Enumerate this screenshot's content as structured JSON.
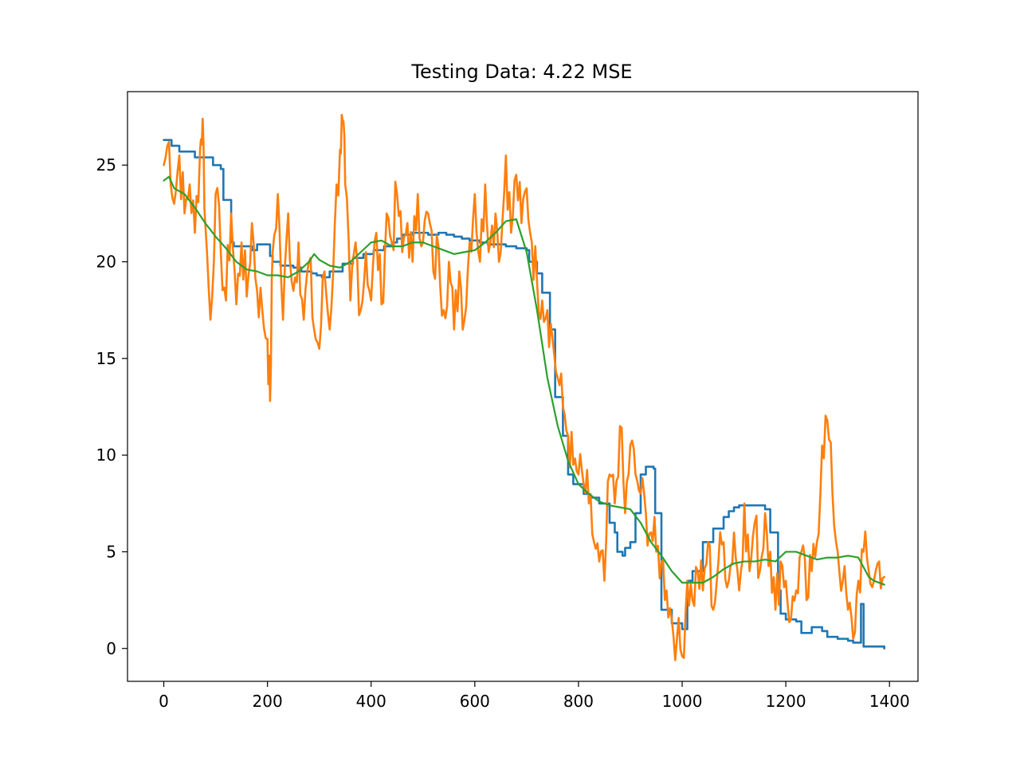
{
  "chart_data": {
    "type": "line",
    "title": "Testing Data: 4.22 MSE",
    "xlabel": "",
    "ylabel": "",
    "xlim": [
      -70,
      1455
    ],
    "ylim": [
      -1.7,
      28.8
    ],
    "xticks": [
      0,
      200,
      400,
      600,
      800,
      1000,
      1200,
      1400
    ],
    "xtick_labels": [
      "0",
      "200",
      "400",
      "600",
      "800",
      "1000",
      "1200",
      "1400"
    ],
    "yticks": [
      0,
      5,
      10,
      15,
      20,
      25
    ],
    "ytick_labels": [
      "0",
      "5",
      "10",
      "15",
      "20",
      "25"
    ],
    "grid": false,
    "legend": "none",
    "series": [
      {
        "color": "#1f77b4",
        "style": "step",
        "x": [
          0,
          15,
          30,
          60,
          95,
          110,
          115,
          130,
          135,
          170,
          180,
          205,
          210,
          225,
          245,
          250,
          265,
          285,
          295,
          305,
          320,
          345,
          365,
          385,
          405,
          425,
          440,
          450,
          460,
          480,
          490,
          510,
          530,
          545,
          560,
          575,
          590,
          610,
          625,
          640,
          660,
          680,
          700,
          705,
          720,
          730,
          745,
          755,
          770,
          780,
          790,
          810,
          820,
          840,
          860,
          870,
          875,
          885,
          890,
          900,
          910,
          920,
          930,
          945,
          948,
          960,
          980,
          1000,
          1010,
          1020,
          1040,
          1060,
          1080,
          1090,
          1100,
          1110,
          1150,
          1160,
          1170,
          1185,
          1190,
          1200,
          1220,
          1230,
          1250,
          1270,
          1280,
          1300,
          1320,
          1330,
          1340,
          1345,
          1350,
          1390
        ],
        "y": [
          26.3,
          26.0,
          25.7,
          25.4,
          25.0,
          24.8,
          23.2,
          21.0,
          20.8,
          20.6,
          20.9,
          20.3,
          20.0,
          19.8,
          19.8,
          19.7,
          19.5,
          19.4,
          19.3,
          19.2,
          19.5,
          19.9,
          20.2,
          20.4,
          20.6,
          20.8,
          21.0,
          21.2,
          21.4,
          21.5,
          21.5,
          21.4,
          21.5,
          21.4,
          21.3,
          21.2,
          21.1,
          21.0,
          20.9,
          20.9,
          20.8,
          20.7,
          20.6,
          20.0,
          19.4,
          18.4,
          16.5,
          13.0,
          11.0,
          9.0,
          8.5,
          8.0,
          7.8,
          7.5,
          6.5,
          6.0,
          5.0,
          4.8,
          5.2,
          5.5,
          7.0,
          9.0,
          9.4,
          9.3,
          7.0,
          2.0,
          1.3,
          1.0,
          3.5,
          4.0,
          5.5,
          6.2,
          6.8,
          7.1,
          7.3,
          7.4,
          7.4,
          7.2,
          6.0,
          3.0,
          1.8,
          1.5,
          1.4,
          0.8,
          1.1,
          0.9,
          0.6,
          0.5,
          0.4,
          0.3,
          0.3,
          2.3,
          0.1,
          0.0
        ]
      },
      {
        "color": "#ff7f0e",
        "style": "noisy",
        "x": [
          0,
          10,
          20,
          30,
          40,
          50,
          60,
          70,
          75,
          80,
          90,
          100,
          110,
          120,
          130,
          140,
          150,
          160,
          170,
          180,
          190,
          200,
          205,
          210,
          220,
          230,
          240,
          250,
          260,
          270,
          280,
          290,
          300,
          310,
          320,
          330,
          340,
          345,
          350,
          360,
          370,
          380,
          390,
          400,
          410,
          420,
          430,
          440,
          450,
          460,
          470,
          480,
          490,
          500,
          510,
          520,
          530,
          540,
          550,
          560,
          570,
          580,
          590,
          600,
          610,
          620,
          630,
          640,
          650,
          660,
          670,
          680,
          690,
          700,
          710,
          720,
          730,
          740,
          750,
          760,
          770,
          780,
          790,
          800,
          810,
          820,
          830,
          840,
          850,
          860,
          870,
          880,
          890,
          900,
          910,
          920,
          930,
          940,
          950,
          960,
          970,
          980,
          990,
          1000,
          1010,
          1020,
          1030,
          1040,
          1050,
          1060,
          1070,
          1080,
          1090,
          1100,
          1110,
          1120,
          1130,
          1140,
          1150,
          1160,
          1170,
          1180,
          1190,
          1200,
          1210,
          1220,
          1230,
          1240,
          1250,
          1260,
          1270,
          1280,
          1290,
          1300,
          1310,
          1320,
          1330,
          1340,
          1350,
          1360,
          1370,
          1380,
          1390
        ],
        "y": [
          25.0,
          26.2,
          23.0,
          25.5,
          22.5,
          24.0,
          21.5,
          25.8,
          27.4,
          22.0,
          17.0,
          23.5,
          20.5,
          18.0,
          22.5,
          17.8,
          21.0,
          18.2,
          22.0,
          18.5,
          17.5,
          16.0,
          12.8,
          20.5,
          23.5,
          17.0,
          22.5,
          18.5,
          21.0,
          17.0,
          20.0,
          16.5,
          15.5,
          19.5,
          16.5,
          22.0,
          25.8,
          27.3,
          24.0,
          18.0,
          21.0,
          17.5,
          20.5,
          18.0,
          21.5,
          17.8,
          22.5,
          21.0,
          23.5,
          20.5,
          22.0,
          20.0,
          23.5,
          21.0,
          22.5,
          19.5,
          20.8,
          17.5,
          20.0,
          16.5,
          19.5,
          17.0,
          21.0,
          23.5,
          20.0,
          24.0,
          21.0,
          22.5,
          20.5,
          25.5,
          21.5,
          24.5,
          22.0,
          23.8,
          21.0,
          19.0,
          18.0,
          17.5,
          16.0,
          14.0,
          12.5,
          11.0,
          9.5,
          9.0,
          8.5,
          7.5,
          5.5,
          4.5,
          3.5,
          9.0,
          7.5,
          11.5,
          7.0,
          10.5,
          9.0,
          8.0,
          7.0,
          6.0,
          5.0,
          4.5,
          3.0,
          1.5,
          0.5,
          -0.4,
          3.5,
          2.5,
          4.0,
          3.0,
          5.5,
          2.0,
          4.5,
          5.5,
          3.5,
          6.0,
          3.0,
          7.5,
          4.0,
          6.5,
          4.0,
          7.0,
          5.0,
          2.0,
          4.5,
          3.5,
          1.5,
          3.0,
          5.0,
          2.5,
          4.0,
          5.5,
          10.5,
          11.8,
          8.0,
          5.0,
          3.5,
          2.0,
          0.5,
          3.5,
          5.0,
          4.0,
          3.5,
          4.5,
          3.7
        ]
      },
      {
        "color": "#2ca02c",
        "style": "smooth",
        "x": [
          0,
          10,
          20,
          40,
          60,
          80,
          100,
          120,
          140,
          160,
          180,
          200,
          220,
          240,
          260,
          280,
          290,
          300,
          320,
          340,
          360,
          380,
          400,
          420,
          440,
          460,
          480,
          500,
          520,
          540,
          560,
          580,
          600,
          620,
          640,
          660,
          680,
          700,
          720,
          740,
          760,
          780,
          800,
          820,
          840,
          860,
          880,
          900,
          920,
          940,
          960,
          980,
          1000,
          1020,
          1040,
          1060,
          1080,
          1100,
          1120,
          1140,
          1160,
          1180,
          1200,
          1220,
          1240,
          1260,
          1280,
          1300,
          1320,
          1340,
          1360,
          1370,
          1390
        ],
        "y": [
          24.2,
          24.4,
          23.8,
          23.5,
          22.8,
          22.0,
          21.3,
          20.7,
          20.0,
          19.6,
          19.5,
          19.3,
          19.3,
          19.2,
          19.5,
          20.0,
          20.4,
          20.1,
          19.8,
          19.7,
          20.0,
          20.5,
          21.0,
          21.1,
          20.8,
          20.8,
          21.0,
          21.0,
          20.8,
          20.6,
          20.4,
          20.5,
          20.6,
          21.0,
          21.5,
          22.1,
          22.2,
          20.5,
          17.5,
          14.0,
          11.5,
          9.7,
          8.5,
          8.0,
          7.6,
          7.4,
          7.3,
          7.2,
          6.5,
          5.5,
          4.8,
          4.0,
          3.4,
          3.4,
          3.4,
          3.7,
          4.1,
          4.4,
          4.5,
          4.5,
          4.6,
          4.5,
          5.0,
          5.0,
          4.8,
          4.6,
          4.7,
          4.7,
          4.8,
          4.7,
          3.7,
          3.5,
          3.3
        ]
      }
    ]
  }
}
